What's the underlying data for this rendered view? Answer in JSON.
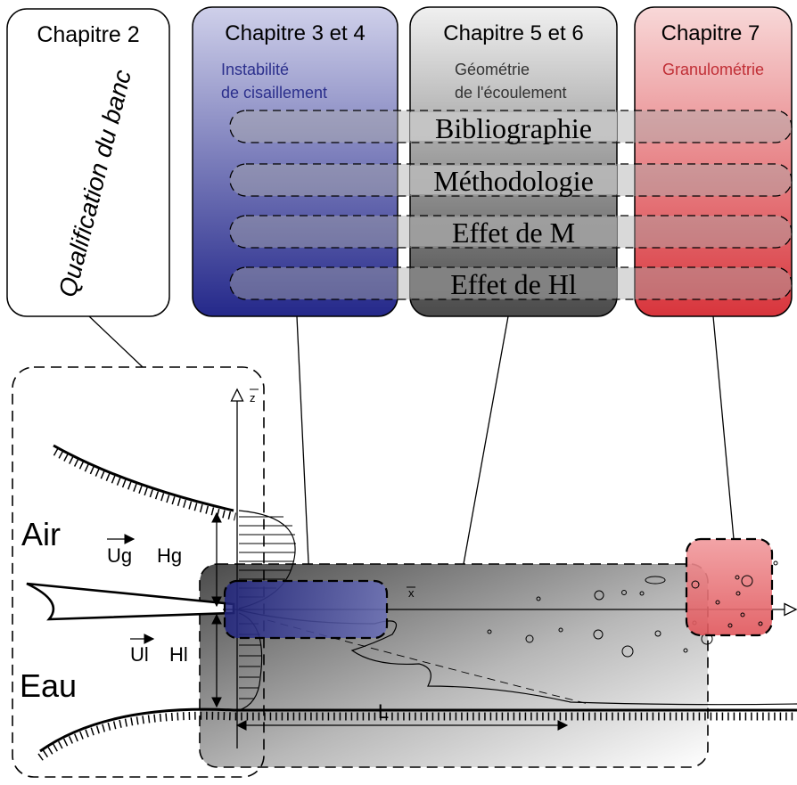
{
  "chapters": {
    "ch2": {
      "title": "Chapitre 2",
      "subtitle": "Qualification du banc"
    },
    "ch34": {
      "title": "Chapitre 3 et 4",
      "subtitle_line1": "Instabilité",
      "subtitle_line2": "de cisaillement"
    },
    "ch56": {
      "title": "Chapitre 5 et 6",
      "subtitle_line1": "Géométrie",
      "subtitle_line2": "de l'écoulement"
    },
    "ch7": {
      "title": "Chapitre 7",
      "subtitle_line1": "Granulométrie"
    }
  },
  "rows": [
    {
      "label": "Bibliographie"
    },
    {
      "label": "Méthodologie"
    },
    {
      "label": "Effet de M"
    },
    {
      "label": "Effet de Hl"
    }
  ],
  "flow": {
    "air_label": "Air",
    "water_label": "Eau",
    "ug_label": "Ug",
    "hg_label": "Hg",
    "ul_label": "Ul",
    "hl_label": "Hl",
    "x_axis": "x",
    "z_axis": "z",
    "length_label": "L"
  },
  "colors": {
    "blue": "#2b2f8c",
    "grey": "#555555",
    "red": "#d9444a"
  }
}
